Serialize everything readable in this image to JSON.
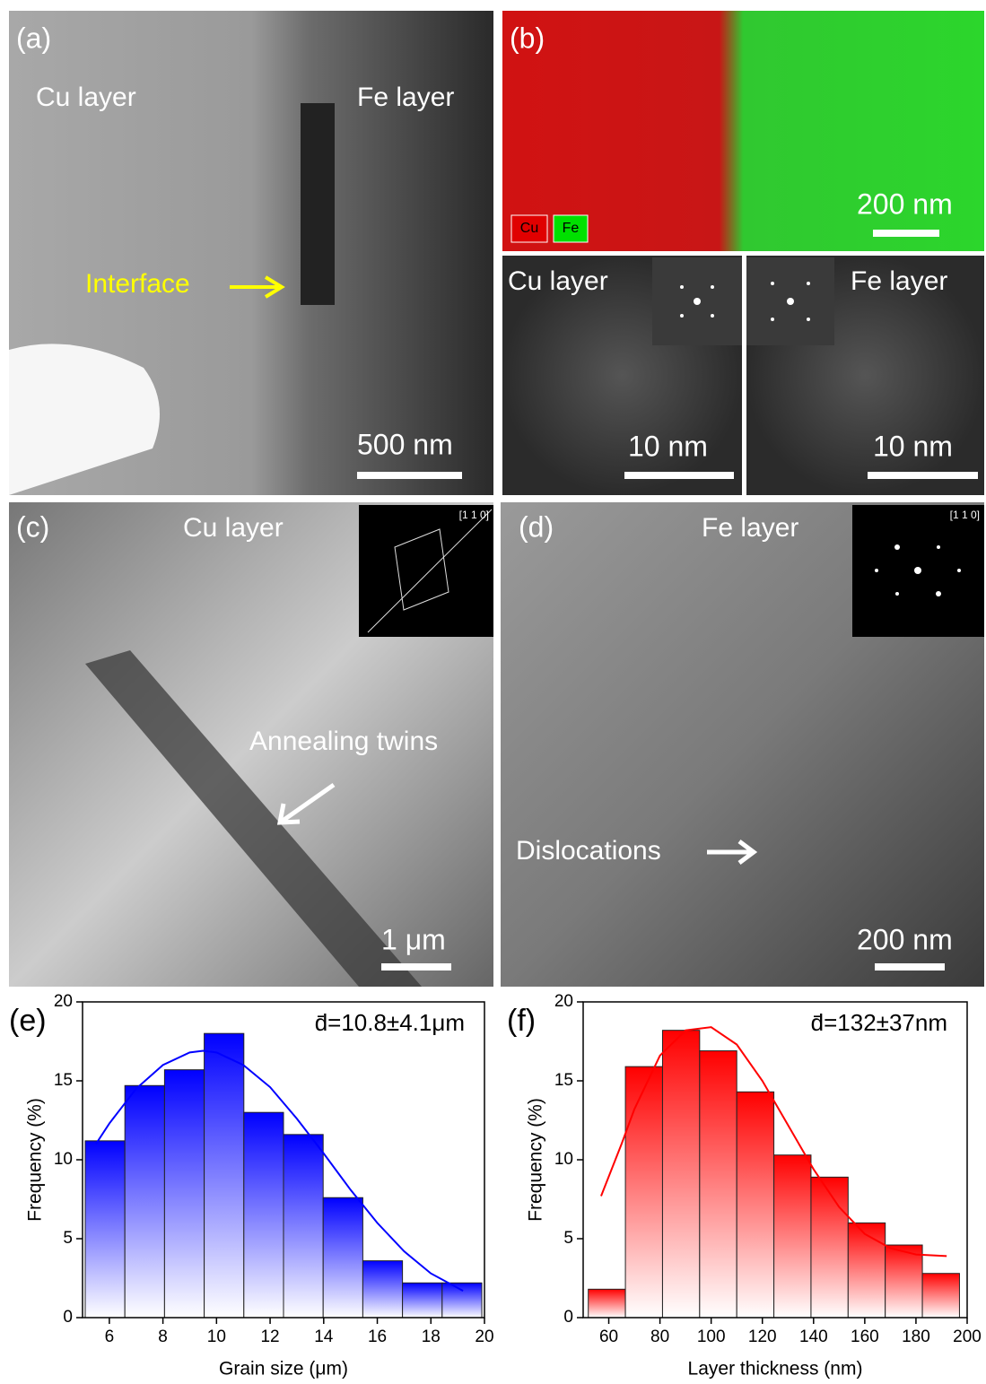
{
  "panels": {
    "a": {
      "label": "(a)",
      "left_layer": "Cu layer",
      "right_layer": "Fe layer",
      "annotation": "Interface",
      "scale_bar": "500 nm"
    },
    "b": {
      "label": "(b)",
      "legend": [
        "Cu",
        "Fe"
      ],
      "scale_bar": "200 nm",
      "hrtem": [
        {
          "label": "Cu layer",
          "scale_bar": "10 nm"
        },
        {
          "label": "Fe layer",
          "scale_bar": "10 nm"
        }
      ]
    },
    "c": {
      "label": "(c)",
      "layer": "Cu layer",
      "zone_axis": "[1 1 0]",
      "annotation": "Annealing twins",
      "scale_bar": "1 μm"
    },
    "d": {
      "label": "(d)",
      "layer": "Fe layer",
      "zone_axis": "[1 1 0]",
      "annotation": "Dislocations",
      "scale_bar": "200 nm"
    }
  },
  "chart_data": [
    {
      "type": "histogram",
      "panel_label": "(e)",
      "annotation": "d̄=10.8±4.1μm",
      "xlabel": "Grain size (μm)",
      "ylabel": "Frequency (%)",
      "color": "#0000ff",
      "bins": [
        5.1,
        6.58,
        8.06,
        9.54,
        11.02,
        12.5,
        13.98,
        15.46,
        16.94,
        18.42,
        19.9
      ],
      "values": [
        11.2,
        14.7,
        15.7,
        18.0,
        13.0,
        11.6,
        7.6,
        3.6,
        2.2,
        2.2
      ],
      "fit": {
        "x": [
          5.5,
          6,
          7,
          8,
          9,
          9.5,
          10,
          11,
          12,
          13,
          14,
          15,
          16,
          17,
          18,
          19.2
        ],
        "y": [
          11.0,
          12.3,
          14.5,
          16.0,
          16.8,
          16.9,
          16.8,
          16.0,
          14.6,
          12.6,
          10.4,
          8.1,
          6.0,
          4.2,
          2.8,
          1.7
        ]
      },
      "xlim": [
        5,
        20
      ],
      "ylim": [
        0,
        20
      ],
      "xticks": [
        6,
        8,
        10,
        12,
        14,
        16,
        18,
        20
      ],
      "yticks": [
        0,
        5,
        10,
        15,
        20
      ]
    },
    {
      "type": "histogram",
      "panel_label": "(f)",
      "annotation": "d̄=132±37nm",
      "xlabel": "Layer thickness (nm)",
      "ylabel": "Frequency (%)",
      "color": "#ff0000",
      "bins": [
        52,
        66.5,
        81,
        95.5,
        110,
        124.5,
        139,
        153.5,
        168,
        182.5,
        197
      ],
      "values": [
        1.8,
        15.9,
        18.2,
        16.9,
        14.3,
        10.3,
        8.9,
        6.0,
        4.6,
        2.8
      ],
      "fit": {
        "x": [
          57,
          65,
          70,
          80,
          90,
          100,
          110,
          120,
          130,
          140,
          150,
          160,
          170,
          180,
          192
        ],
        "y": [
          7.7,
          11.0,
          13.2,
          16.6,
          18.2,
          18.4,
          17.3,
          15.0,
          12.2,
          9.4,
          7.0,
          5.3,
          4.4,
          4.0,
          3.9
        ]
      },
      "xlim": [
        50,
        200
      ],
      "ylim": [
        0,
        20
      ],
      "xticks": [
        60,
        80,
        100,
        120,
        140,
        160,
        180,
        200
      ],
      "yticks": [
        0,
        5,
        10,
        15,
        20
      ]
    }
  ]
}
